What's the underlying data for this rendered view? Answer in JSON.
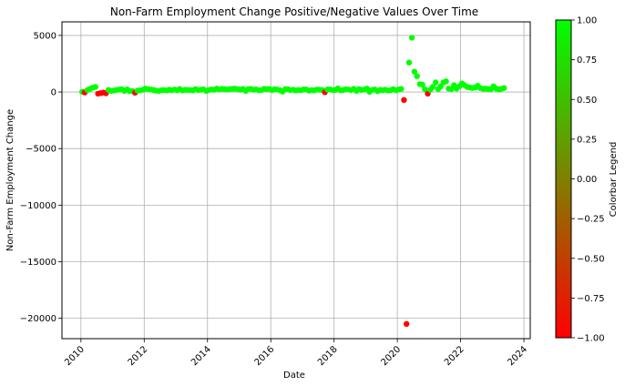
{
  "chart_data": {
    "type": "scatter",
    "title": "Non-Farm Employment Change Positive/Negative Values Over Time",
    "xlabel": "Date",
    "ylabel": "Non-Farm Employment Change",
    "xlim": [
      2009.4,
      2024.2
    ],
    "ylim": [
      -21800,
      6200
    ],
    "x_ticks": [
      2010,
      2012,
      2014,
      2016,
      2018,
      2020,
      2022,
      2024
    ],
    "y_ticks": [
      5000,
      0,
      -5000,
      -10000,
      -15000,
      -20000
    ],
    "y_tick_labels": [
      "5000",
      "0",
      "−5000",
      "−10000",
      "−15000",
      "−20000"
    ],
    "grid": true,
    "colorbar": {
      "label": "Colorbar Legend",
      "range": [
        -1,
        1
      ],
      "ticks": [
        "1.00",
        "0.75",
        "0.50",
        "0.25",
        "0.00",
        "−0.25",
        "−0.50",
        "−0.75",
        "−1.00"
      ],
      "tick_values": [
        1,
        0.75,
        0.5,
        0.25,
        0,
        -0.25,
        -0.5,
        -0.75,
        -1
      ],
      "color_low": "#ff0000",
      "color_high": "#00ff00"
    },
    "series": [
      {
        "points": [
          [
            2010.04,
            20,
            1
          ],
          [
            2010.12,
            -40,
            -1
          ],
          [
            2010.21,
            180,
            1
          ],
          [
            2010.29,
            280,
            1
          ],
          [
            2010.37,
            380,
            1
          ],
          [
            2010.46,
            450,
            1
          ],
          [
            2010.54,
            -150,
            -1
          ],
          [
            2010.62,
            -100,
            -1
          ],
          [
            2010.71,
            -50,
            -1
          ],
          [
            2010.79,
            -120,
            -1
          ],
          [
            2010.87,
            180,
            1
          ],
          [
            2010.96,
            100,
            1
          ],
          [
            2011.04,
            130,
            1
          ],
          [
            2011.12,
            180,
            1
          ],
          [
            2011.21,
            210,
            1
          ],
          [
            2011.29,
            250,
            1
          ],
          [
            2011.37,
            100,
            1
          ],
          [
            2011.46,
            230,
            1
          ],
          [
            2011.54,
            80,
            1
          ],
          [
            2011.62,
            90,
            1
          ],
          [
            2011.71,
            -60,
            -1
          ],
          [
            2011.79,
            120,
            1
          ],
          [
            2011.87,
            150,
            1
          ],
          [
            2011.96,
            200,
            1
          ],
          [
            2012.04,
            300,
            1
          ],
          [
            2012.12,
            250,
            1
          ],
          [
            2012.21,
            220,
            1
          ],
          [
            2012.29,
            180,
            1
          ],
          [
            2012.37,
            120,
            1
          ],
          [
            2012.46,
            90,
            1
          ],
          [
            2012.54,
            150,
            1
          ],
          [
            2012.62,
            170,
            1
          ],
          [
            2012.71,
            140,
            1
          ],
          [
            2012.79,
            200,
            1
          ],
          [
            2012.87,
            160,
            1
          ],
          [
            2012.96,
            220,
            1
          ],
          [
            2013.04,
            150,
            1
          ],
          [
            2013.12,
            260,
            1
          ],
          [
            2013.21,
            140,
            1
          ],
          [
            2013.29,
            190,
            1
          ],
          [
            2013.37,
            180,
            1
          ],
          [
            2013.46,
            170,
            1
          ],
          [
            2013.54,
            150,
            1
          ],
          [
            2013.62,
            250,
            1
          ],
          [
            2013.71,
            180,
            1
          ],
          [
            2013.79,
            200,
            1
          ],
          [
            2013.87,
            230,
            1
          ],
          [
            2013.96,
            100,
            1
          ],
          [
            2014.04,
            170,
            1
          ],
          [
            2014.12,
            220,
            1
          ],
          [
            2014.21,
            200,
            1
          ],
          [
            2014.29,
            300,
            1
          ],
          [
            2014.37,
            230,
            1
          ],
          [
            2014.46,
            280,
            1
          ],
          [
            2014.54,
            250,
            1
          ],
          [
            2014.62,
            210,
            1
          ],
          [
            2014.71,
            260,
            1
          ],
          [
            2014.79,
            280,
            1
          ],
          [
            2014.87,
            300,
            1
          ],
          [
            2014.96,
            250,
            1
          ],
          [
            2015.04,
            200,
            1
          ],
          [
            2015.12,
            270,
            1
          ],
          [
            2015.21,
            100,
            1
          ],
          [
            2015.29,
            250,
            1
          ],
          [
            2015.37,
            280,
            1
          ],
          [
            2015.46,
            200,
            1
          ],
          [
            2015.54,
            230,
            1
          ],
          [
            2015.62,
            150,
            1
          ],
          [
            2015.71,
            170,
            1
          ],
          [
            2015.79,
            280,
            1
          ],
          [
            2015.87,
            260,
            1
          ],
          [
            2015.96,
            270,
            1
          ],
          [
            2016.04,
            180,
            1
          ],
          [
            2016.12,
            240,
            1
          ],
          [
            2016.21,
            210,
            1
          ],
          [
            2016.29,
            160,
            1
          ],
          [
            2016.37,
            40,
            1
          ],
          [
            2016.46,
            260,
            1
          ],
          [
            2016.54,
            250,
            1
          ],
          [
            2016.62,
            170,
            1
          ],
          [
            2016.71,
            200,
            1
          ],
          [
            2016.79,
            140,
            1
          ],
          [
            2016.87,
            180,
            1
          ],
          [
            2016.96,
            160,
            1
          ],
          [
            2017.04,
            230,
            1
          ],
          [
            2017.12,
            220,
            1
          ],
          [
            2017.21,
            120,
            1
          ],
          [
            2017.29,
            170,
            1
          ],
          [
            2017.37,
            150,
            1
          ],
          [
            2017.46,
            210,
            1
          ],
          [
            2017.54,
            200,
            1
          ],
          [
            2017.62,
            180,
            1
          ],
          [
            2017.71,
            -20,
            -1
          ],
          [
            2017.79,
            220,
            1
          ],
          [
            2017.87,
            230,
            1
          ],
          [
            2017.96,
            170,
            1
          ],
          [
            2018.04,
            180,
            1
          ],
          [
            2018.12,
            320,
            1
          ],
          [
            2018.21,
            150,
            1
          ],
          [
            2018.29,
            180,
            1
          ],
          [
            2018.37,
            240,
            1
          ],
          [
            2018.46,
            210,
            1
          ],
          [
            2018.54,
            170,
            1
          ],
          [
            2018.62,
            280,
            1
          ],
          [
            2018.71,
            100,
            1
          ],
          [
            2018.79,
            250,
            1
          ],
          [
            2018.87,
            180,
            1
          ],
          [
            2018.96,
            220,
            1
          ],
          [
            2019.04,
            300,
            1
          ],
          [
            2019.12,
            20,
            1
          ],
          [
            2019.21,
            190,
            1
          ],
          [
            2019.29,
            220,
            1
          ],
          [
            2019.37,
            80,
            1
          ],
          [
            2019.46,
            180,
            1
          ],
          [
            2019.54,
            160,
            1
          ],
          [
            2019.62,
            200,
            1
          ],
          [
            2019.71,
            130,
            1
          ],
          [
            2019.79,
            150,
            1
          ],
          [
            2019.87,
            250,
            1
          ],
          [
            2019.96,
            150,
            1
          ],
          [
            2020.04,
            220,
            1
          ],
          [
            2020.12,
            270,
            1
          ],
          [
            2020.21,
            -700,
            -1
          ],
          [
            2020.29,
            -20500,
            -1
          ],
          [
            2020.37,
            2600,
            1
          ],
          [
            2020.46,
            4800,
            1
          ],
          [
            2020.54,
            1800,
            1
          ],
          [
            2020.62,
            1400,
            1
          ],
          [
            2020.71,
            700,
            1
          ],
          [
            2020.79,
            650,
            1
          ],
          [
            2020.87,
            250,
            1
          ],
          [
            2020.96,
            -150,
            -1
          ],
          [
            2021.04,
            200,
            1
          ],
          [
            2021.12,
            450,
            1
          ],
          [
            2021.21,
            850,
            1
          ],
          [
            2021.29,
            250,
            1
          ],
          [
            2021.37,
            500,
            1
          ],
          [
            2021.46,
            850,
            1
          ],
          [
            2021.54,
            950,
            1
          ],
          [
            2021.62,
            300,
            1
          ],
          [
            2021.71,
            250,
            1
          ],
          [
            2021.79,
            600,
            1
          ],
          [
            2021.87,
            300,
            1
          ],
          [
            2021.96,
            500,
            1
          ],
          [
            2022.04,
            750,
            1
          ],
          [
            2022.12,
            600,
            1
          ],
          [
            2022.21,
            450,
            1
          ],
          [
            2022.29,
            400,
            1
          ],
          [
            2022.37,
            350,
            1
          ],
          [
            2022.46,
            400,
            1
          ],
          [
            2022.54,
            550,
            1
          ],
          [
            2022.62,
            350,
            1
          ],
          [
            2022.71,
            280,
            1
          ],
          [
            2022.79,
            300,
            1
          ],
          [
            2022.87,
            250,
            1
          ],
          [
            2022.96,
            250,
            1
          ],
          [
            2023.04,
            500,
            1
          ],
          [
            2023.12,
            300,
            1
          ],
          [
            2023.21,
            220,
            1
          ],
          [
            2023.29,
            280,
            1
          ],
          [
            2023.37,
            350,
            1
          ]
        ]
      }
    ]
  }
}
